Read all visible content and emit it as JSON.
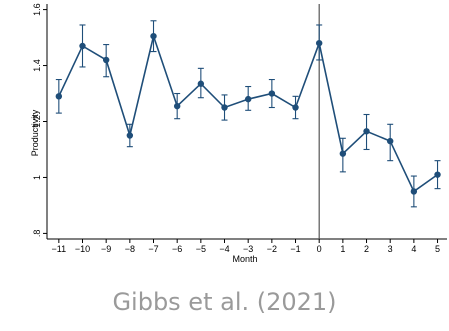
{
  "chart_data": {
    "type": "line",
    "title": "",
    "xlabel": "Month",
    "ylabel": "Productivity",
    "xlim": [
      -11.5,
      5.4
    ],
    "ylim": [
      0.78,
      1.62
    ],
    "x_ticks": [
      -11,
      -10,
      -9,
      -8,
      -7,
      -6,
      -5,
      -4,
      -3,
      -2,
      -1,
      0,
      1,
      2,
      3,
      4,
      5
    ],
    "x_tick_labels": [
      "−11",
      "−10",
      "−9",
      "−8",
      "−7",
      "−6",
      "−5",
      "−4",
      "−3",
      "−2",
      "−1",
      "0",
      "1",
      "2",
      "3",
      "4",
      "5"
    ],
    "y_ticks": [
      0.8,
      1.0,
      1.2,
      1.4,
      1.6
    ],
    "y_tick_labels": [
      ".8",
      "1",
      "1.2",
      "1.4",
      "1.6"
    ],
    "reference_line_x": 0,
    "grid": false,
    "series": [
      {
        "x": [
          -11,
          -10,
          -9,
          -8,
          -7,
          -6,
          -5,
          -4,
          -3,
          -2,
          -1,
          0,
          1,
          2,
          3,
          4,
          5
        ],
        "values": [
          1.29,
          1.47,
          1.42,
          1.15,
          1.505,
          1.255,
          1.335,
          1.25,
          1.28,
          1.3,
          1.25,
          1.48,
          1.085,
          1.165,
          1.13,
          0.95,
          1.01
        ],
        "ci_low": [
          1.23,
          1.395,
          1.36,
          1.11,
          1.45,
          1.21,
          1.285,
          1.205,
          1.24,
          1.25,
          1.21,
          1.42,
          1.02,
          1.1,
          1.06,
          0.895,
          0.96
        ],
        "ci_high": [
          1.35,
          1.545,
          1.475,
          1.19,
          1.56,
          1.3,
          1.39,
          1.295,
          1.325,
          1.35,
          1.29,
          1.545,
          1.14,
          1.225,
          1.19,
          1.005,
          1.06
        ]
      }
    ],
    "colors": {
      "series": "#1f4e79",
      "reference_line": "#555555",
      "axis": "#000000"
    }
  },
  "caption": "Gibbs et al. (2021)"
}
